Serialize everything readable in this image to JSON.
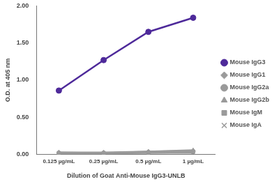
{
  "chart_data": {
    "type": "line",
    "x_label": "Dilution of Goat Anti-Mouse IgG3-UNLB",
    "y_label": "O.D. at 405 nm",
    "categories": [
      "0.125 µg/mL",
      "0.25 µg/mL",
      "0.5 µg/mL",
      "1 µg/mL"
    ],
    "series": [
      {
        "name": "Mouse IgG1",
        "color": "#9a9a9a",
        "marker": "diamond",
        "values": [
          0.03,
          0.03,
          0.04,
          0.05
        ]
      },
      {
        "name": "Mouse IgG2a",
        "color": "#9a9a9a",
        "marker": "circle",
        "values": [
          0.02,
          0.02,
          0.03,
          0.04
        ]
      },
      {
        "name": "Mouse IgG2b",
        "color": "#9a9a9a",
        "marker": "triangle",
        "values": [
          0.03,
          0.02,
          0.04,
          0.06
        ]
      },
      {
        "name": "Mouse IgG3",
        "color": "#4e2a9a",
        "marker": "circle",
        "values": [
          0.86,
          1.27,
          1.65,
          1.84
        ]
      },
      {
        "name": "Mouse IgM",
        "color": "#9a9a9a",
        "marker": "square",
        "values": [
          0.02,
          0.02,
          0.02,
          0.03
        ]
      },
      {
        "name": "Mouse IgA",
        "color": "#9a9a9a",
        "marker": "x",
        "values": [
          0.01,
          0.01,
          0.02,
          0.02
        ]
      }
    ],
    "ylim": [
      0,
      2
    ],
    "yticks": [
      {
        "value": 0,
        "label": "0.00"
      },
      {
        "value": 0.5,
        "label": "0.50"
      },
      {
        "value": 1,
        "label": "1.00"
      },
      {
        "value": 1.5,
        "label": "1.50"
      },
      {
        "value": 2,
        "label": "2.00"
      }
    ],
    "grid": false,
    "legend": "right"
  }
}
